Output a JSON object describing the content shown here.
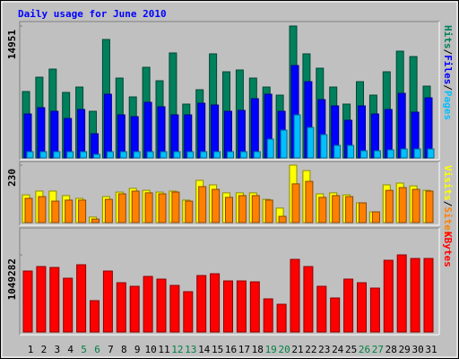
{
  "title": "Daily usage for June 2010",
  "legend_separator": "/",
  "highlight_indices": [
    4,
    5,
    11,
    12,
    18,
    19,
    25,
    26
  ],
  "highlight_color": "#008040",
  "chart_data": [
    {
      "type": "bar",
      "ylim": [
        0,
        14951
      ],
      "yticks": [
        14951
      ],
      "series": [
        {
          "name": "Hits",
          "color": "#00805c",
          "values": [
            7527,
            9154,
            10069,
            7425,
            8035,
            5289,
            13426,
            9052,
            6916,
            10273,
            8747,
            11900,
            6103,
            7730,
            11798,
            9764,
            9968,
            9052,
            8035,
            7120,
            14951,
            11798,
            10171,
            8035,
            6103,
            8645,
            7120,
            9764,
            12103,
            11493,
            8137
          ]
        },
        {
          "name": "Files",
          "color": "#0000ff",
          "values": [
            4984,
            5696,
            5289,
            4475,
            5492,
            2746,
            7221,
            4882,
            4679,
            6306,
            5797,
            4882,
            4882,
            6204,
            6001,
            5289,
            5390,
            6713,
            7221,
            5289,
            10476,
            8645,
            6611,
            5899,
            4272,
            5899,
            4984,
            5492,
            7323,
            5187,
            6815
          ]
        },
        {
          "name": "Pages",
          "color": "#00c0ff",
          "values": [
            712,
            712,
            712,
            712,
            712,
            407,
            712,
            712,
            712,
            712,
            712,
            712,
            712,
            712,
            712,
            712,
            712,
            712,
            2136,
            3153,
            4882,
            3458,
            2644,
            1424,
            1424,
            814,
            814,
            915,
            1017,
            1017,
            1017
          ]
        }
      ]
    },
    {
      "type": "bar",
      "ylim": [
        0,
        230
      ],
      "yticks": [
        230
      ],
      "series": [
        {
          "name": "Visits",
          "color": "#ffff00",
          "values": [
            111,
            126,
            126,
            108,
            97,
            22,
            104,
            122,
            137,
            129,
            122,
            126,
            90,
            169,
            151,
            119,
            119,
            119,
            93,
            58,
            230,
            208,
            115,
            119,
            111,
            79,
            43,
            151,
            158,
            147,
            129
          ]
        },
        {
          "name": "Sites",
          "color": "#ff8000",
          "values": [
            97,
            104,
            86,
            90,
            90,
            14,
            93,
            115,
            126,
            119,
            115,
            122,
            86,
            144,
            133,
            101,
            108,
            108,
            90,
            25,
            155,
            165,
            101,
            108,
            104,
            79,
            43,
            129,
            140,
            133,
            126
          ]
        }
      ]
    },
    {
      "type": "bar",
      "ylim": [
        0,
        1049282
      ],
      "yticks": [
        1049282
      ],
      "categories": [
        "1",
        "2",
        "3",
        "4",
        "5",
        "6",
        "7",
        "8",
        "9",
        "10",
        "11",
        "12",
        "13",
        "14",
        "15",
        "16",
        "17",
        "18",
        "19",
        "20",
        "21",
        "22",
        "23",
        "24",
        "25",
        "26",
        "27",
        "28",
        "29",
        "30",
        "31"
      ],
      "series": [
        {
          "name": "KBytes",
          "color": "#ff0000",
          "values": [
            829665,
            890670,
            878469,
            732057,
            915072,
            427033,
            829665,
            671052,
            622248,
            756459,
            719856,
            634449,
            549042,
            768660,
            793062,
            695454,
            695454,
            683253,
            451435,
            378237,
            988278,
            890670,
            622248,
            463636,
            719856,
            671052,
            597846,
            976077,
            1049282,
            1000477,
            1000477
          ]
        }
      ]
    }
  ]
}
